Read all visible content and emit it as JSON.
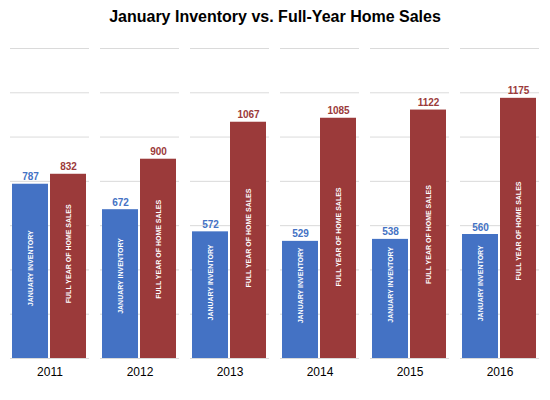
{
  "chart_data": {
    "type": "bar",
    "title": "January Inventory vs. Full-Year Home Sales",
    "categories": [
      "2011",
      "2012",
      "2013",
      "2014",
      "2015",
      "2016"
    ],
    "series": [
      {
        "name": "JANUARY INVENTORY",
        "color": "#4472C4",
        "values": [
          787,
          672,
          572,
          529,
          538,
          560
        ]
      },
      {
        "name": "FULL YEAR OF HOME SALES",
        "color": "#9B3A3A",
        "values": [
          832,
          900,
          1067,
          1085,
          1122,
          1175
        ]
      }
    ],
    "ylim": [
      0,
      1400
    ],
    "yticks": [
      0,
      200,
      400,
      600,
      800,
      1000,
      1200,
      1400
    ],
    "grid": true,
    "data_labels": true,
    "tick_labels": "x"
  }
}
